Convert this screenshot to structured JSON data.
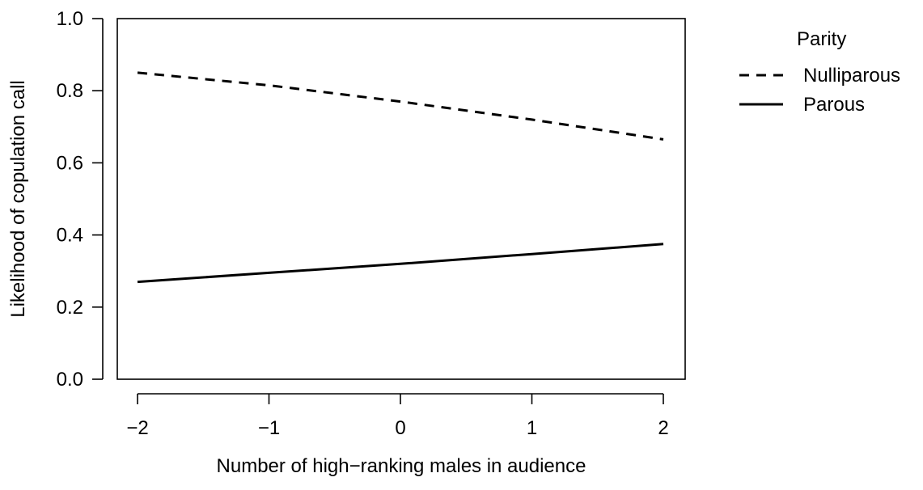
{
  "chart_data": {
    "type": "line",
    "title": "",
    "xlabel": "Number of high−ranking males in audience",
    "ylabel": "Likelihood of copulation call",
    "xlim": [
      -2,
      2
    ],
    "ylim": [
      0,
      1
    ],
    "x_ticks": [
      -2,
      -1,
      0,
      1,
      2
    ],
    "x_tick_labels": [
      "−2",
      "−1",
      "0",
      "1",
      "2"
    ],
    "y_ticks": [
      0,
      0.2,
      0.4,
      0.6,
      0.8,
      1.0
    ],
    "y_tick_labels": [
      "0.0",
      "0.2",
      "0.4",
      "0.6",
      "0.8",
      "1.0"
    ],
    "grid": false,
    "legend": {
      "title": "Parity",
      "placement": "right, outside plot"
    },
    "line_color": "#000000",
    "series": [
      {
        "name": "Nulliparous",
        "style": "dashed",
        "x": [
          -2,
          -1,
          0,
          1,
          2
        ],
        "y": [
          0.85,
          0.815,
          0.77,
          0.72,
          0.665
        ]
      },
      {
        "name": "Parous",
        "style": "solid",
        "x": [
          -2,
          -1,
          0,
          1,
          2
        ],
        "y": [
          0.27,
          0.295,
          0.32,
          0.347,
          0.375
        ]
      }
    ]
  }
}
